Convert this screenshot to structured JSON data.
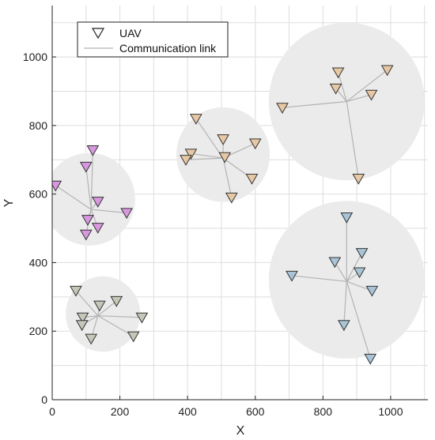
{
  "chart_data": {
    "type": "scatter",
    "xlabel": "X",
    "ylabel": "Y",
    "xlim": [
      0,
      1110
    ],
    "ylim": [
      0,
      1150
    ],
    "x_ticks": [
      0,
      200,
      400,
      600,
      800,
      1000
    ],
    "y_ticks": [
      0,
      200,
      400,
      600,
      800,
      1000
    ],
    "x_tick_labels": [
      "0",
      "200",
      "400",
      "600",
      "800",
      "1000"
    ],
    "y_tick_labels": [
      "0",
      "200",
      "400",
      "600",
      "800",
      "1000"
    ],
    "grid": true,
    "legend": {
      "placement": "top-left",
      "entries": [
        {
          "label": "UAV",
          "marker": "triangle-down"
        },
        {
          "label": "Communication link",
          "marker": "line"
        }
      ]
    },
    "colors": {
      "zone_fill": "#ebebeb",
      "link": "#b3b3b3",
      "grid": "#dddddd",
      "marker_edge": "#333333"
    },
    "clusters": [
      {
        "color": "#d898e0",
        "center": [
          110,
          585
        ],
        "radius": 135,
        "hub": [
          115,
          555
        ],
        "uavs": [
          [
            10,
            625
          ],
          [
            120,
            728
          ],
          [
            100,
            680
          ],
          [
            135,
            578
          ],
          [
            220,
            545
          ],
          [
            105,
            525
          ],
          [
            135,
            502
          ],
          [
            100,
            482
          ]
        ]
      },
      {
        "color": "#e6c8a4",
        "center": [
          505,
          715
        ],
        "radius": 138,
        "hub": [
          505,
          705
        ],
        "uavs": [
          [
            425,
            820
          ],
          [
            505,
            760
          ],
          [
            600,
            748
          ],
          [
            410,
            718
          ],
          [
            395,
            700
          ],
          [
            510,
            708
          ],
          [
            590,
            645
          ],
          [
            530,
            590
          ]
        ]
      },
      {
        "color": "#e6c8a4",
        "center": [
          870,
          870
        ],
        "radius": 230,
        "hub": [
          870,
          870
        ],
        "uavs": [
          [
            845,
            955
          ],
          [
            990,
            962
          ],
          [
            838,
            908
          ],
          [
            943,
            890
          ],
          [
            680,
            852
          ],
          [
            905,
            645
          ]
        ]
      },
      {
        "color": "#c3c8b8",
        "center": [
          150,
          250
        ],
        "radius": 110,
        "hub": [
          135,
          245
        ],
        "uavs": [
          [
            70,
            318
          ],
          [
            190,
            288
          ],
          [
            140,
            275
          ],
          [
            265,
            240
          ],
          [
            90,
            240
          ],
          [
            88,
            218
          ],
          [
            240,
            185
          ],
          [
            115,
            178
          ]
        ]
      },
      {
        "color": "#a8c4d6",
        "center": [
          870,
          350
        ],
        "radius": 230,
        "hub": [
          870,
          345
        ],
        "uavs": [
          [
            870,
            532
          ],
          [
            915,
            428
          ],
          [
            835,
            402
          ],
          [
            908,
            372
          ],
          [
            708,
            362
          ],
          [
            945,
            318
          ],
          [
            862,
            218
          ],
          [
            940,
            120
          ]
        ]
      }
    ]
  }
}
